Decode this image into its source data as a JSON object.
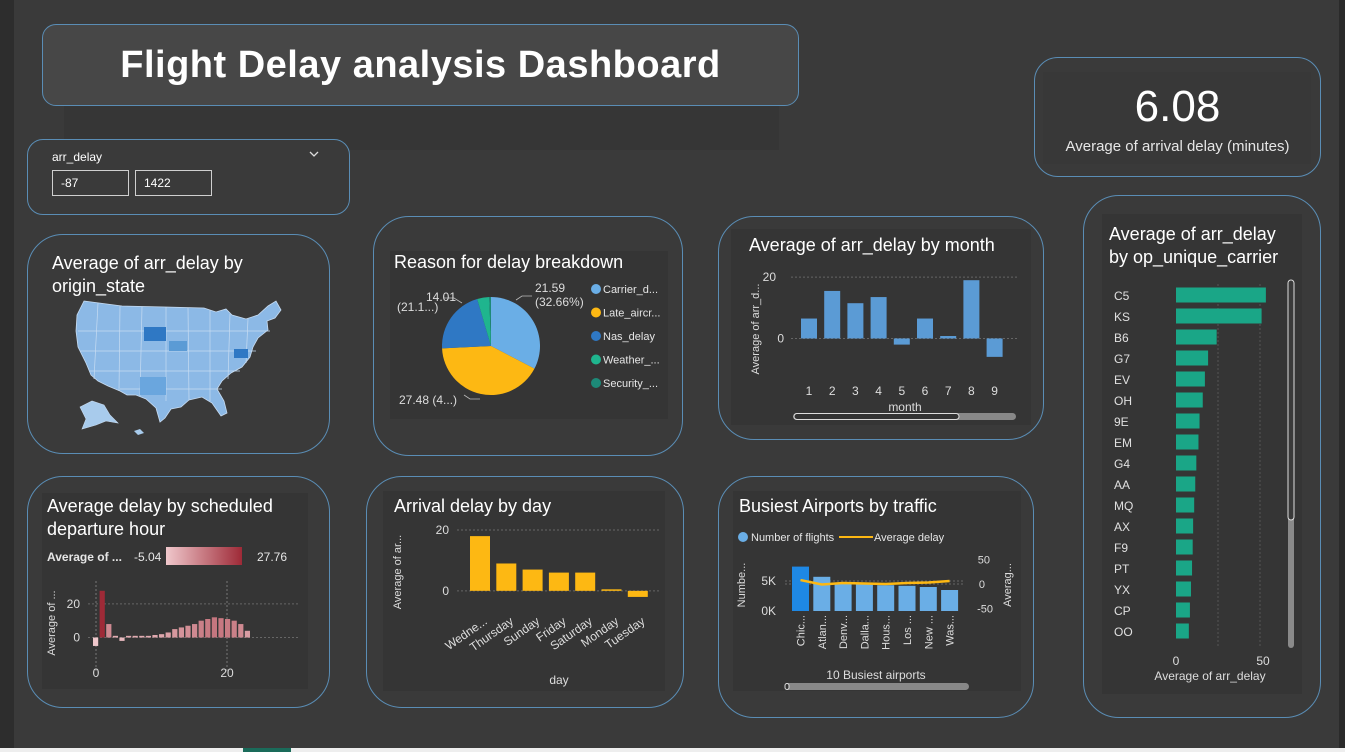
{
  "title": "Flight Delay analysis Dashboard",
  "kpi": {
    "value": "6.08",
    "label": "Average of arrival delay (minutes)"
  },
  "slicer": {
    "label": "arr_delay",
    "min": "-87",
    "max": "1422",
    "chevron": "chevron-down-icon"
  },
  "map": {
    "title_line1": "Average of arr_delay by",
    "title_line2": "origin_state"
  },
  "colors": {
    "background": "#3a3a3a",
    "card_border": "#5a8db5",
    "blue": "#5b9bd5",
    "bright_blue": "#1e88e5",
    "orange": "#fdb813",
    "teal": "#1aa687",
    "maroon": "#a0303d",
    "pink": "#c87880"
  },
  "pie": {
    "title": "Reason for delay breakdown",
    "slices": [
      {
        "name": "Carrier_d...",
        "value": 32.66,
        "label_a": "21.59",
        "label_b": "(32.66%)",
        "color": "#6aaee6"
      },
      {
        "name": "Late_aircr...",
        "value": 41.58,
        "label_a": "27.48 (4...)",
        "label_b": "",
        "color": "#fdb813"
      },
      {
        "name": "Nas_delay",
        "value": 21.2,
        "label_a": "14.01",
        "label_b": "(21.1...)",
        "color": "#2f78c4"
      },
      {
        "name": "Weather_...",
        "value": 4.0,
        "label_a": "",
        "label_b": "",
        "color": "#1fb58e"
      },
      {
        "name": "Security_...",
        "value": 0.56,
        "label_a": "",
        "label_b": "",
        "color": "#1d8a78"
      }
    ]
  },
  "chart_data": [
    {
      "id": "month",
      "type": "bar",
      "title": "Average of arr_delay by month",
      "xlabel": "month",
      "ylabel": "Average of arr_d...",
      "categories": [
        "1",
        "2",
        "3",
        "4",
        "5",
        "6",
        "7",
        "8",
        "9"
      ],
      "values": [
        6.5,
        15.5,
        11.5,
        13.5,
        -2,
        6.5,
        0.8,
        19,
        -6
      ],
      "ylim": [
        -8,
        22
      ],
      "yticks": [
        "20",
        "0"
      ]
    },
    {
      "id": "day",
      "type": "bar",
      "title": "Arrival delay by day",
      "xlabel": "day",
      "ylabel": "Average of ar...",
      "categories": [
        "Wedne...",
        "Thursday",
        "Sunday",
        "Friday",
        "Saturday",
        "Monday",
        "Tuesday"
      ],
      "values": [
        18,
        9,
        7,
        6,
        6,
        0.5,
        -2
      ],
      "ylim": [
        -4,
        21
      ],
      "yticks": [
        "20",
        "0"
      ]
    },
    {
      "id": "hour",
      "type": "bar",
      "title": "Average delay by scheduled departure hour",
      "title_line1": "Average delay by scheduled",
      "title_line2": "departure hour",
      "ylabel": "Average of ...",
      "legend_label": "Average of ...",
      "legend_min": "-5.04",
      "legend_max": "27.76",
      "xticks": [
        "0",
        "20"
      ],
      "yticks": [
        "20",
        "0"
      ],
      "x": [
        0,
        1,
        2,
        3,
        4,
        5,
        6,
        7,
        8,
        9,
        10,
        11,
        12,
        13,
        14,
        15,
        16,
        17,
        18,
        19,
        20,
        21,
        22,
        23
      ],
      "values": [
        -5,
        27.76,
        8,
        1,
        -2,
        1,
        1,
        1,
        1,
        1.5,
        2,
        3,
        5,
        6,
        7,
        8,
        10,
        11,
        12,
        11.5,
        11,
        10,
        8,
        4
      ],
      "ylim": [
        -8,
        30
      ]
    },
    {
      "id": "airports",
      "type": "bar",
      "title": "Busiest Airports by traffic",
      "xlabel": "10 Busiest airports",
      "ylabel_left": "Numbe...",
      "ylabel_right": "Averag...",
      "legend": [
        "Number of flights",
        "Average delay"
      ],
      "categories": [
        "Chic...",
        "Atlan...",
        "Denv...",
        "Dalla...",
        "Hous...",
        "Los ...",
        "New ...",
        "Was..."
      ],
      "series": [
        {
          "name": "Number of flights",
          "values": [
            7400,
            5700,
            4600,
            4500,
            4300,
            4200,
            4000,
            3500
          ]
        },
        {
          "name": "Average delay",
          "values": [
            8,
            -1,
            2,
            1,
            0,
            2,
            3,
            6
          ]
        }
      ],
      "yleft_ticks": [
        "5K",
        "0K"
      ],
      "yright_ticks": [
        "50",
        "0",
        "-50"
      ],
      "ylim_left": [
        0,
        9000
      ],
      "ylim_right": [
        -55,
        55
      ]
    },
    {
      "id": "carrier",
      "type": "bar",
      "title_line1": "Average of arr_delay",
      "title_line2": "by op_unique_carrier",
      "xlabel": "Average of arr_delay",
      "xticks": [
        "0",
        "50"
      ],
      "categories": [
        "C5",
        "KS",
        "B6",
        "G7",
        "EV",
        "OH",
        "9E",
        "EM",
        "G4",
        "AA",
        "MQ",
        "AX",
        "F9",
        "PT",
        "YX",
        "CP",
        "OO"
      ],
      "values": [
        42,
        40,
        19,
        15,
        13.5,
        12.5,
        11,
        10.5,
        9.5,
        9,
        8.5,
        8,
        7.8,
        7.5,
        7,
        6.5,
        6
      ],
      "xlim": [
        0,
        60
      ]
    }
  ]
}
